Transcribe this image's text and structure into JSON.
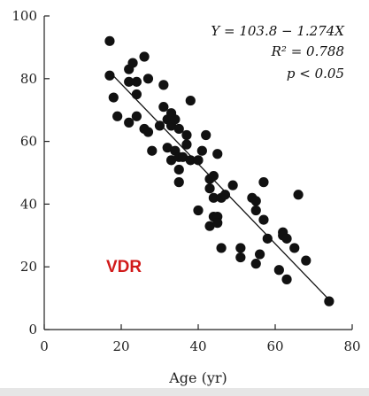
{
  "chart_data": {
    "type": "scatter",
    "xlabel": "Age (yr)",
    "ylabel": "",
    "xlim": [
      0,
      80
    ],
    "ylim": [
      0,
      100
    ],
    "xticks": [
      "0",
      "20",
      "40",
      "60",
      "80"
    ],
    "yticks": [
      "0",
      "20",
      "40",
      "60",
      "80",
      "100"
    ],
    "grid": false,
    "annotation_label": "VDR",
    "annotation_color": "#d11a1a",
    "stats": {
      "equation": "Y = 103.8 − 1.274X",
      "r2": "R² = 0.788",
      "p": "p < 0.05"
    },
    "regression": {
      "intercept": 103.8,
      "slope": -1.274,
      "x_range": [
        17,
        74
      ]
    },
    "marker_color": "#111111",
    "points": [
      {
        "x": 17,
        "y": 92
      },
      {
        "x": 17,
        "y": 81
      },
      {
        "x": 18,
        "y": 74
      },
      {
        "x": 19,
        "y": 68
      },
      {
        "x": 22,
        "y": 83
      },
      {
        "x": 22,
        "y": 79
      },
      {
        "x": 22,
        "y": 66
      },
      {
        "x": 23,
        "y": 85
      },
      {
        "x": 24,
        "y": 79
      },
      {
        "x": 24,
        "y": 75
      },
      {
        "x": 24,
        "y": 68
      },
      {
        "x": 26,
        "y": 87
      },
      {
        "x": 26,
        "y": 64
      },
      {
        "x": 27,
        "y": 80
      },
      {
        "x": 27,
        "y": 63
      },
      {
        "x": 28,
        "y": 57
      },
      {
        "x": 30,
        "y": 65
      },
      {
        "x": 31,
        "y": 78
      },
      {
        "x": 31,
        "y": 71
      },
      {
        "x": 32,
        "y": 67
      },
      {
        "x": 32,
        "y": 58
      },
      {
        "x": 33,
        "y": 69
      },
      {
        "x": 33,
        "y": 65
      },
      {
        "x": 33,
        "y": 54
      },
      {
        "x": 34,
        "y": 67
      },
      {
        "x": 34,
        "y": 57
      },
      {
        "x": 35,
        "y": 64
      },
      {
        "x": 35,
        "y": 55
      },
      {
        "x": 35,
        "y": 51
      },
      {
        "x": 35,
        "y": 47
      },
      {
        "x": 36,
        "y": 55
      },
      {
        "x": 37,
        "y": 62
      },
      {
        "x": 37,
        "y": 59
      },
      {
        "x": 38,
        "y": 73
      },
      {
        "x": 38,
        "y": 54
      },
      {
        "x": 40,
        "y": 54
      },
      {
        "x": 40,
        "y": 38
      },
      {
        "x": 41,
        "y": 57
      },
      {
        "x": 42,
        "y": 62
      },
      {
        "x": 43,
        "y": 48
      },
      {
        "x": 43,
        "y": 45
      },
      {
        "x": 43,
        "y": 33
      },
      {
        "x": 44,
        "y": 49
      },
      {
        "x": 44,
        "y": 42
      },
      {
        "x": 44,
        "y": 36
      },
      {
        "x": 45,
        "y": 56
      },
      {
        "x": 45,
        "y": 36
      },
      {
        "x": 45,
        "y": 34
      },
      {
        "x": 46,
        "y": 42
      },
      {
        "x": 46,
        "y": 26
      },
      {
        "x": 47,
        "y": 43
      },
      {
        "x": 49,
        "y": 46
      },
      {
        "x": 51,
        "y": 26
      },
      {
        "x": 51,
        "y": 23
      },
      {
        "x": 54,
        "y": 42
      },
      {
        "x": 55,
        "y": 41
      },
      {
        "x": 55,
        "y": 38
      },
      {
        "x": 55,
        "y": 21
      },
      {
        "x": 56,
        "y": 24
      },
      {
        "x": 57,
        "y": 47
      },
      {
        "x": 57,
        "y": 35
      },
      {
        "x": 58,
        "y": 29
      },
      {
        "x": 61,
        "y": 19
      },
      {
        "x": 62,
        "y": 31
      },
      {
        "x": 62,
        "y": 30
      },
      {
        "x": 63,
        "y": 29
      },
      {
        "x": 63,
        "y": 16
      },
      {
        "x": 65,
        "y": 26
      },
      {
        "x": 66,
        "y": 43
      },
      {
        "x": 68,
        "y": 22
      },
      {
        "x": 74,
        "y": 9
      }
    ]
  }
}
